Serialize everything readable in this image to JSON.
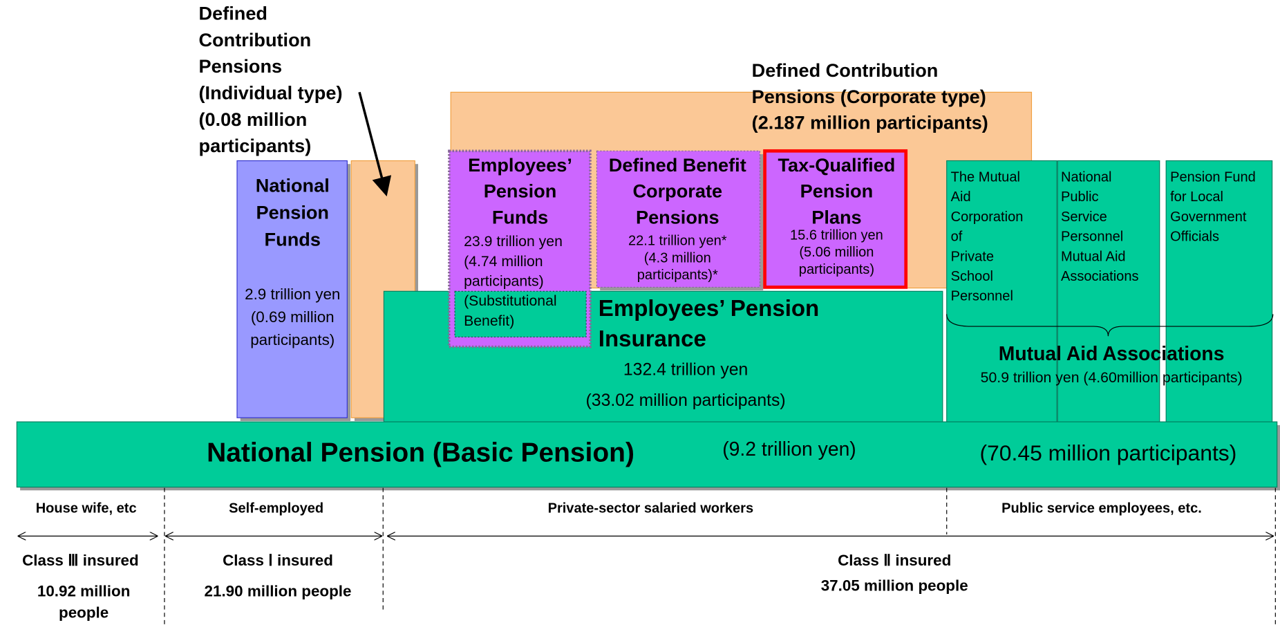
{
  "individual_dc": {
    "lines": [
      "Defined",
      "Contribution",
      "Pensions",
      "(Individual type)",
      " (0.08 million",
      "participants)"
    ]
  },
  "corporate_dc": {
    "lines": [
      "Defined Contribution",
      "Pensions (Corporate type)",
      "(2.187 million participants)"
    ]
  },
  "national_pension_funds": {
    "title": [
      "National",
      "Pension",
      "Funds"
    ],
    "details": [
      "2.9 trillion yen",
      "(0.69 million",
      "participants)"
    ]
  },
  "employees_pension_funds": {
    "title": [
      "Employees’",
      "Pension",
      "Funds"
    ],
    "details": [
      "23.9  trillion yen",
      "(4.74 million",
      "participants)",
      "(Substitutional",
      "Benefit)"
    ]
  },
  "defined_benefit": {
    "title": [
      "Defined Benefit",
      "Corporate",
      "Pensions"
    ],
    "details": [
      "22.1 trillion yen*",
      "(4.3 million",
      "participants)*"
    ]
  },
  "tax_qualified": {
    "title": [
      "Tax-Qualified",
      "Pension",
      "Plans"
    ],
    "details": [
      "15.6 trillion yen",
      "(5.06 million",
      "participants)"
    ]
  },
  "employees_pension_insurance": {
    "title": [
      "Employees’ Pension",
      "Insurance"
    ],
    "details": [
      "132.4 trillion yen",
      "(33.02 million participants)"
    ]
  },
  "mutual_aid": {
    "boxes": [
      [
        "The Mutual",
        "Aid",
        "Corporation",
        "of",
        "Private",
        "School",
        "Personnel"
      ],
      [
        "National",
        "Public",
        "Service",
        "Personnel",
        "Mutual Aid",
        "Associations"
      ],
      [
        "Pension Fund",
        "for Local",
        "Government",
        "Officials"
      ]
    ],
    "title": "Mutual Aid Associations",
    "details": "50.9 trillion yen (4.60million participants)"
  },
  "national_pension": {
    "title": "National Pension (Basic Pension)",
    "assets": "(9.2 trillion yen)",
    "participants": "(70.45 million participants)"
  },
  "groups": [
    {
      "label": "House wife, etc",
      "class": "Class Ⅲ insured",
      "count": [
        "10.92 million",
        "people"
      ]
    },
    {
      "label": "Self-employed",
      "class": "Class Ⅰ insured",
      "count": [
        "21.90 million people"
      ]
    },
    {
      "label": "Private-sector salaried workers"
    },
    {
      "label": "Public service employees, etc.",
      "class": "Class Ⅱ insured",
      "count": [
        "37.05 million people"
      ]
    }
  ]
}
